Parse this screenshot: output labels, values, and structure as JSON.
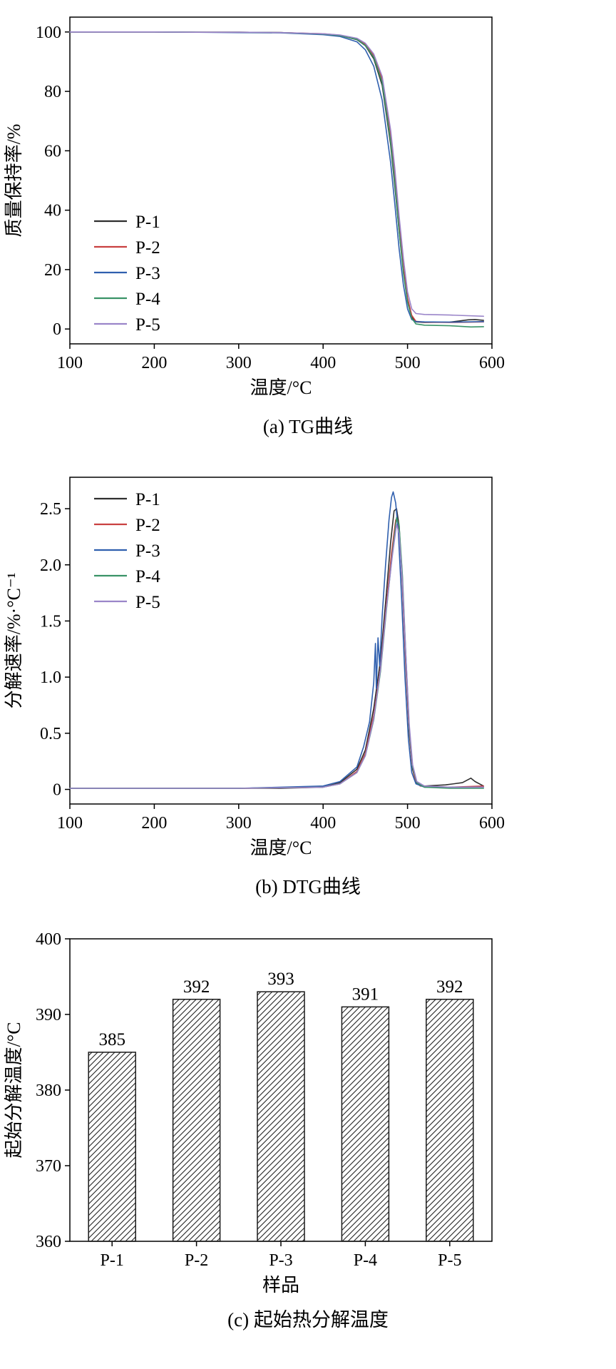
{
  "chart_data": [
    {
      "type": "line",
      "caption": "(a) TG曲线",
      "xlabel": "温度/°C",
      "ylabel": "质量保持率/%",
      "xlim": [
        100,
        600
      ],
      "xticks": [
        100,
        200,
        300,
        400,
        500,
        600
      ],
      "ylim": [
        -5,
        105
      ],
      "yticks": [
        0,
        20,
        40,
        60,
        80,
        100
      ],
      "ytick_labels": [
        "0",
        "20",
        "40",
        "60",
        "80",
        "100"
      ],
      "grid": false,
      "legend_position": "lower-left",
      "series": [
        {
          "name": "P-1",
          "color": "#2f2f2f",
          "points": [
            [
              100,
              100
            ],
            [
              150,
              100
            ],
            [
              200,
              100
            ],
            [
              250,
              99.9
            ],
            [
              300,
              99.9
            ],
            [
              350,
              99.8
            ],
            [
              400,
              99.3
            ],
            [
              420,
              98.8
            ],
            [
              440,
              97.4
            ],
            [
              450,
              95.4
            ],
            [
              460,
              91
            ],
            [
              470,
              82
            ],
            [
              480,
              62
            ],
            [
              485,
              48
            ],
            [
              490,
              33
            ],
            [
              495,
              20
            ],
            [
              500,
              9.5
            ],
            [
              505,
              4
            ],
            [
              510,
              2.4
            ],
            [
              520,
              2.2
            ],
            [
              550,
              2.3
            ],
            [
              572,
              3.1
            ],
            [
              580,
              3.2
            ],
            [
              590,
              2.9
            ]
          ]
        },
        {
          "name": "P-2",
          "color": "#c94040",
          "points": [
            [
              100,
              100
            ],
            [
              150,
              100
            ],
            [
              200,
              100
            ],
            [
              250,
              99.9
            ],
            [
              300,
              99.9
            ],
            [
              350,
              99.8
            ],
            [
              400,
              99.4
            ],
            [
              420,
              98.9
            ],
            [
              440,
              97.7
            ],
            [
              450,
              95.9
            ],
            [
              460,
              92
            ],
            [
              470,
              84
            ],
            [
              480,
              65
            ],
            [
              485,
              51
            ],
            [
              490,
              35
            ],
            [
              495,
              21
            ],
            [
              500,
              10.5
            ],
            [
              505,
              4.6
            ],
            [
              510,
              2.6
            ],
            [
              520,
              2.3
            ],
            [
              550,
              2.2
            ],
            [
              590,
              2.4
            ]
          ]
        },
        {
          "name": "P-3",
          "color": "#2f5fae",
          "points": [
            [
              100,
              100
            ],
            [
              150,
              100
            ],
            [
              200,
              100
            ],
            [
              250,
              99.9
            ],
            [
              300,
              99.8
            ],
            [
              350,
              99.7
            ],
            [
              400,
              99.1
            ],
            [
              420,
              98.5
            ],
            [
              440,
              96.7
            ],
            [
              450,
              94
            ],
            [
              460,
              88.5
            ],
            [
              470,
              77
            ],
            [
              480,
              56
            ],
            [
              485,
              42
            ],
            [
              490,
              27
            ],
            [
              495,
              15
            ],
            [
              500,
              6.8
            ],
            [
              505,
              3.2
            ],
            [
              510,
              2.5
            ],
            [
              520,
              2.4
            ],
            [
              550,
              2.3
            ],
            [
              590,
              2.5
            ]
          ]
        },
        {
          "name": "P-4",
          "color": "#3a9367",
          "points": [
            [
              100,
              100
            ],
            [
              150,
              100
            ],
            [
              200,
              100
            ],
            [
              250,
              99.9
            ],
            [
              300,
              99.9
            ],
            [
              350,
              99.8
            ],
            [
              400,
              99.3
            ],
            [
              420,
              98.8
            ],
            [
              440,
              97.5
            ],
            [
              450,
              95.5
            ],
            [
              460,
              91.5
            ],
            [
              470,
              83
            ],
            [
              480,
              63
            ],
            [
              485,
              49
            ],
            [
              490,
              33
            ],
            [
              495,
              19
            ],
            [
              500,
              9
            ],
            [
              505,
              3.6
            ],
            [
              510,
              1.7
            ],
            [
              520,
              1.3
            ],
            [
              550,
              1.1
            ],
            [
              575,
              0.7
            ],
            [
              590,
              0.8
            ]
          ]
        },
        {
          "name": "P-5",
          "color": "#9a85c9",
          "points": [
            [
              100,
              100
            ],
            [
              150,
              100
            ],
            [
              200,
              100
            ],
            [
              250,
              99.9
            ],
            [
              300,
              99.9
            ],
            [
              350,
              99.8
            ],
            [
              400,
              99.4
            ],
            [
              420,
              99
            ],
            [
              440,
              97.9
            ],
            [
              450,
              96.2
            ],
            [
              460,
              92.6
            ],
            [
              470,
              85
            ],
            [
              480,
              67
            ],
            [
              485,
              54
            ],
            [
              490,
              38
            ],
            [
              495,
              24
            ],
            [
              500,
              12.5
            ],
            [
              505,
              6.8
            ],
            [
              510,
              5.2
            ],
            [
              520,
              4.9
            ],
            [
              550,
              4.7
            ],
            [
              590,
              4.3
            ]
          ]
        }
      ]
    },
    {
      "type": "line",
      "caption": "(b) DTG曲线",
      "xlabel": "温度/°C",
      "ylabel": "分解速率/%·°C⁻¹",
      "xlim": [
        100,
        600
      ],
      "xticks": [
        100,
        200,
        300,
        400,
        500,
        600
      ],
      "ylim": [
        -0.13,
        2.78
      ],
      "yticks": [
        0,
        0.5,
        1.0,
        1.5,
        2.0,
        2.5
      ],
      "ytick_labels": [
        "0",
        "0.5",
        "1.0",
        "1.5",
        "2.0",
        "2.5"
      ],
      "grid": false,
      "legend_position": "upper-left",
      "series": [
        {
          "name": "P-1",
          "color": "#2f2f2f",
          "points": [
            [
              100,
              0.01
            ],
            [
              200,
              0.01
            ],
            [
              300,
              0.01
            ],
            [
              350,
              0.01
            ],
            [
              400,
              0.02
            ],
            [
              420,
              0.06
            ],
            [
              440,
              0.18
            ],
            [
              450,
              0.35
            ],
            [
              460,
              0.72
            ],
            [
              468,
              1.15
            ],
            [
              475,
              1.75
            ],
            [
              480,
              2.2
            ],
            [
              484,
              2.48
            ],
            [
              487,
              2.5
            ],
            [
              490,
              2.35
            ],
            [
              494,
              1.8
            ],
            [
              498,
              1.1
            ],
            [
              502,
              0.5
            ],
            [
              506,
              0.18
            ],
            [
              510,
              0.06
            ],
            [
              520,
              0.03
            ],
            [
              545,
              0.04
            ],
            [
              565,
              0.06
            ],
            [
              575,
              0.1
            ],
            [
              580,
              0.07
            ],
            [
              590,
              0.03
            ]
          ]
        },
        {
          "name": "P-2",
          "color": "#c94040",
          "points": [
            [
              100,
              0.01
            ],
            [
              200,
              0.01
            ],
            [
              300,
              0.01
            ],
            [
              400,
              0.02
            ],
            [
              420,
              0.05
            ],
            [
              440,
              0.16
            ],
            [
              450,
              0.32
            ],
            [
              460,
              0.66
            ],
            [
              468,
              1.08
            ],
            [
              475,
              1.65
            ],
            [
              481,
              2.1
            ],
            [
              486,
              2.4
            ],
            [
              489,
              2.38
            ],
            [
              493,
              2.0
            ],
            [
              497,
              1.3
            ],
            [
              501,
              0.65
            ],
            [
              505,
              0.25
            ],
            [
              509,
              0.08
            ],
            [
              515,
              0.03
            ],
            [
              550,
              0.02
            ],
            [
              590,
              0.03
            ]
          ]
        },
        {
          "name": "P-3",
          "color": "#2f5fae",
          "points": [
            [
              100,
              0.01
            ],
            [
              200,
              0.01
            ],
            [
              300,
              0.01
            ],
            [
              400,
              0.03
            ],
            [
              420,
              0.07
            ],
            [
              440,
              0.2
            ],
            [
              448,
              0.38
            ],
            [
              455,
              0.6
            ],
            [
              460,
              0.95
            ],
            [
              462,
              1.3
            ],
            [
              463,
              0.9
            ],
            [
              465,
              1.35
            ],
            [
              467,
              1.1
            ],
            [
              470,
              1.55
            ],
            [
              474,
              2.0
            ],
            [
              478,
              2.4
            ],
            [
              481,
              2.6
            ],
            [
              483,
              2.65
            ],
            [
              486,
              2.55
            ],
            [
              489,
              2.3
            ],
            [
              493,
              1.7
            ],
            [
              497,
              1.0
            ],
            [
              501,
              0.45
            ],
            [
              505,
              0.15
            ],
            [
              510,
              0.05
            ],
            [
              520,
              0.02
            ],
            [
              550,
              0.02
            ],
            [
              590,
              0.02
            ]
          ]
        },
        {
          "name": "P-4",
          "color": "#3a9367",
          "points": [
            [
              100,
              0.01
            ],
            [
              200,
              0.01
            ],
            [
              300,
              0.01
            ],
            [
              400,
              0.02
            ],
            [
              420,
              0.05
            ],
            [
              440,
              0.15
            ],
            [
              450,
              0.3
            ],
            [
              460,
              0.62
            ],
            [
              468,
              1.05
            ],
            [
              475,
              1.6
            ],
            [
              482,
              2.1
            ],
            [
              487,
              2.42
            ],
            [
              490,
              2.35
            ],
            [
              494,
              1.9
            ],
            [
              498,
              1.2
            ],
            [
              502,
              0.55
            ],
            [
              506,
              0.2
            ],
            [
              511,
              0.06
            ],
            [
              520,
              0.02
            ],
            [
              550,
              0.01
            ],
            [
              590,
              0.01
            ]
          ]
        },
        {
          "name": "P-5",
          "color": "#9a85c9",
          "points": [
            [
              100,
              0.01
            ],
            [
              200,
              0.01
            ],
            [
              300,
              0.01
            ],
            [
              400,
              0.02
            ],
            [
              420,
              0.05
            ],
            [
              440,
              0.15
            ],
            [
              450,
              0.3
            ],
            [
              460,
              0.63
            ],
            [
              468,
              1.07
            ],
            [
              475,
              1.62
            ],
            [
              482,
              2.08
            ],
            [
              487,
              2.36
            ],
            [
              490,
              2.28
            ],
            [
              494,
              1.85
            ],
            [
              498,
              1.2
            ],
            [
              502,
              0.58
            ],
            [
              506,
              0.22
            ],
            [
              511,
              0.07
            ],
            [
              520,
              0.03
            ],
            [
              550,
              0.02
            ],
            [
              590,
              0.02
            ]
          ]
        }
      ]
    },
    {
      "type": "bar",
      "caption": "(c) 起始热分解温度",
      "xlabel": "样品",
      "ylabel": "起始分解温度/°C",
      "categories": [
        "P-1",
        "P-2",
        "P-3",
        "P-4",
        "P-5"
      ],
      "values": [
        385,
        392,
        393,
        391,
        392
      ],
      "value_labels": [
        "385",
        "392",
        "393",
        "391",
        "392"
      ],
      "ylim": [
        360,
        400
      ],
      "yticks": [
        360,
        370,
        380,
        390,
        400
      ],
      "ytick_labels": [
        "360",
        "370",
        "380",
        "390",
        "400"
      ],
      "grid": false,
      "bar_fill": "hatch",
      "bar_edge_color": "#1a1a1a",
      "hatch_color": "#222222"
    }
  ]
}
